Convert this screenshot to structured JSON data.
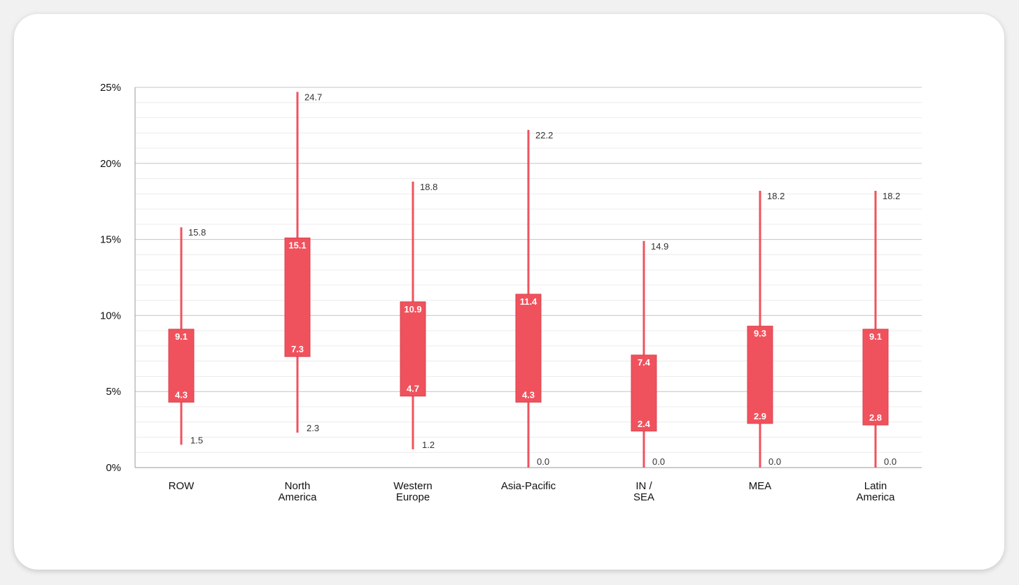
{
  "chart_data": {
    "type": "box",
    "title": "",
    "xlabel": "",
    "ylabel": "",
    "ylim": [
      0,
      25
    ],
    "y_ticks": [
      0,
      5,
      10,
      15,
      20,
      25
    ],
    "y_tick_labels": [
      "0%",
      "5%",
      "10%",
      "15%",
      "20%",
      "25%"
    ],
    "grid": true,
    "color": "#f0525d",
    "categories": [
      [
        "ROW"
      ],
      [
        "North",
        "America"
      ],
      [
        "Western",
        "Europe"
      ],
      [
        "Asia-Pacific"
      ],
      [
        "IN /",
        "SEA"
      ],
      [
        "MEA"
      ],
      [
        "Latin",
        "America"
      ]
    ],
    "boxes": [
      {
        "min": 1.5,
        "q1": 4.3,
        "q3": 9.1,
        "max": 15.8,
        "min_label": "1.5",
        "q1_label": "4.3",
        "q3_label": "9.1",
        "max_label": "15.8"
      },
      {
        "min": 2.3,
        "q1": 7.3,
        "q3": 15.1,
        "max": 24.7,
        "min_label": "2.3",
        "q1_label": "7.3",
        "q3_label": "15.1",
        "max_label": "24.7"
      },
      {
        "min": 1.2,
        "q1": 4.7,
        "q3": 10.9,
        "max": 18.8,
        "min_label": "1.2",
        "q1_label": "4.7",
        "q3_label": "10.9",
        "max_label": "18.8"
      },
      {
        "min": 0.0,
        "q1": 4.3,
        "q3": 11.4,
        "max": 22.2,
        "min_label": "0.0",
        "q1_label": "4.3",
        "q3_label": "11.4",
        "max_label": "22.2"
      },
      {
        "min": 0.0,
        "q1": 2.4,
        "q3": 7.4,
        "max": 14.9,
        "min_label": "0.0",
        "q1_label": "2.4",
        "q3_label": "7.4",
        "max_label": "14.9"
      },
      {
        "min": 0.0,
        "q1": 2.9,
        "q3": 9.3,
        "max": 18.2,
        "min_label": "0.0",
        "q1_label": "2.9",
        "q3_label": "9.3",
        "max_label": "18.2"
      },
      {
        "min": 0.0,
        "q1": 2.8,
        "q3": 9.1,
        "max": 18.2,
        "min_label": "0.0",
        "q1_label": "2.8",
        "q3_label": "9.1",
        "max_label": "18.2"
      }
    ]
  }
}
